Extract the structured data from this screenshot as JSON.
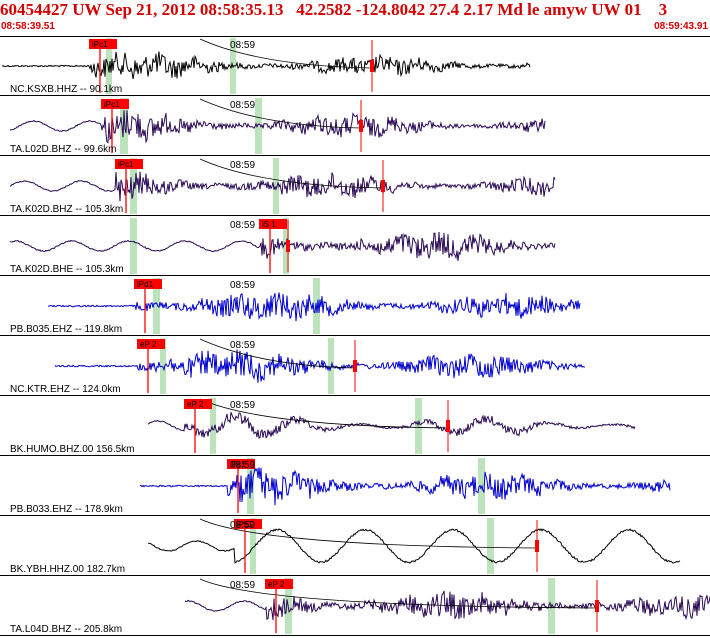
{
  "header": {
    "title": "60454427 UW Sep 21, 2012 08:58:35.13   42.2582 -124.8042 27.4 2.17 Md le amyw UW 01    3",
    "start_time": "08:58:39.51",
    "end_time": "08:59:43.91"
  },
  "minute_label": "08:59",
  "colors": {
    "header_text": "#d40000",
    "pick_flag": "#ff0000",
    "pick_window": "#bde3bd",
    "trace_broadband": "#2a0a55",
    "trace_short_period": "#0000d0",
    "separator": "#000000"
  },
  "traces": [
    {
      "label": "NC.KSXB.HHZ -- 90.1km",
      "pick": "iPc1",
      "color": "#000000"
    },
    {
      "label": "TA.L02D.BHZ -- 99.6km",
      "pick": "iPc1",
      "color": "#2a0a55"
    },
    {
      "label": "TA.K02D.BHZ -- 105.3km",
      "pick": "iPc1",
      "color": "#2a0a55"
    },
    {
      "label": "TA.K02D.BHE -- 105.3km",
      "pick": "iS 1",
      "color": "#2a0a55"
    },
    {
      "label": "PB.B035.EHZ -- 119.8km",
      "pick": "iPd1",
      "color": "#0000d0"
    },
    {
      "label": "NC.KTR.EHZ -- 124.0km",
      "pick": "eP 2",
      "color": "#0000d0"
    },
    {
      "label": "BK.HUMO.BHZ.00 156.5km",
      "pick": "eP 2",
      "color": "#2a0a55"
    },
    {
      "label": "PB.B033.EHZ -- 178.9km",
      "pick": "iPc1",
      "color": "#0000d0"
    },
    {
      "label": "BK.YBH.HHZ.00 182.7km",
      "pick": "iPc1",
      "color": "#000000"
    },
    {
      "label": "TA.L04D.BHZ -- 205.8km",
      "pick": "eP 2",
      "color": "#2a0a55"
    }
  ]
}
